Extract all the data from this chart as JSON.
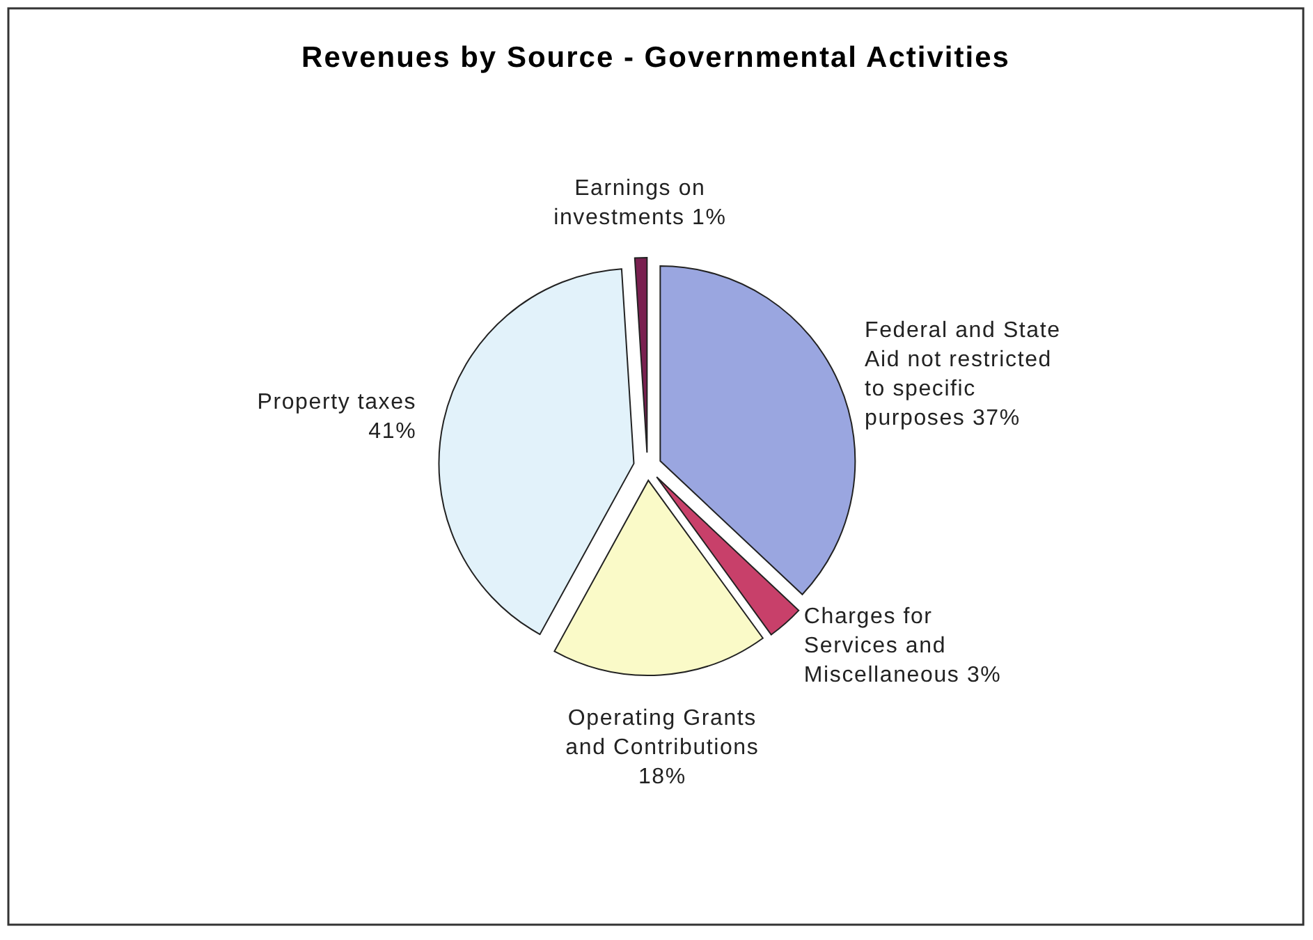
{
  "chart_data": {
    "type": "pie",
    "title": "Revenues by Source - Governmental Activities",
    "categories": [
      "Federal and State Aid not restricted to specific purposes",
      "Charges for Services and Miscellaneous",
      "Operating Grants and Contributions",
      "Property taxes",
      "Earnings on investments"
    ],
    "values": [
      37,
      3,
      18,
      41,
      1
    ],
    "value_labels": [
      "37%",
      "3%",
      "18%",
      "41%",
      "1%"
    ],
    "colors": [
      "#9aa6e0",
      "#c8406a",
      "#fafac8",
      "#e2f2fa",
      "#7a2050"
    ]
  }
}
